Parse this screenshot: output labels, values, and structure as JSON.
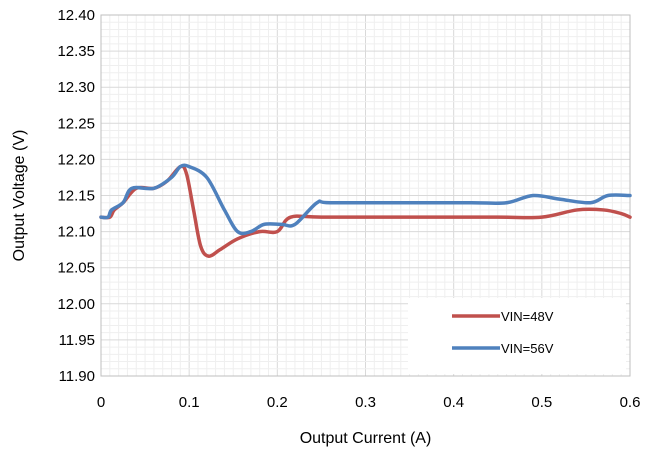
{
  "chart_data": {
    "type": "line",
    "title": "",
    "xlabel": "Output Current (A)",
    "ylabel": "Output Voltage (V)",
    "xlim": [
      0,
      0.6
    ],
    "ylim": [
      11.9,
      12.4
    ],
    "x_ticks": [
      "0",
      "0.1",
      "0.2",
      "0.3",
      "0.4",
      "0.5",
      "0.6"
    ],
    "y_ticks": [
      "11.90",
      "11.95",
      "12.00",
      "12.05",
      "12.10",
      "12.15",
      "12.20",
      "12.25",
      "12.30",
      "12.35",
      "12.40"
    ],
    "grid": true,
    "legend_position": "bottom-right",
    "series": [
      {
        "name": "VIN=48V",
        "color": "#c0504d",
        "points": [
          [
            0,
            12.12
          ],
          [
            0.01,
            12.12
          ],
          [
            0.015,
            12.13
          ],
          [
            0.025,
            12.14
          ],
          [
            0.04,
            12.16
          ],
          [
            0.06,
            12.16
          ],
          [
            0.075,
            12.17
          ],
          [
            0.09,
            12.19
          ],
          [
            0.097,
            12.18
          ],
          [
            0.105,
            12.13
          ],
          [
            0.113,
            12.08
          ],
          [
            0.122,
            12.066
          ],
          [
            0.135,
            12.075
          ],
          [
            0.155,
            12.09
          ],
          [
            0.18,
            12.1
          ],
          [
            0.2,
            12.1
          ],
          [
            0.215,
            12.12
          ],
          [
            0.25,
            12.12
          ],
          [
            0.35,
            12.12
          ],
          [
            0.45,
            12.12
          ],
          [
            0.5,
            12.12
          ],
          [
            0.54,
            12.13
          ],
          [
            0.57,
            12.13
          ],
          [
            0.59,
            12.125
          ],
          [
            0.6,
            12.12
          ]
        ]
      },
      {
        "name": "VIN=56V",
        "color": "#4f81bd",
        "points": [
          [
            0,
            12.12
          ],
          [
            0.008,
            12.12
          ],
          [
            0.012,
            12.13
          ],
          [
            0.025,
            12.14
          ],
          [
            0.035,
            12.16
          ],
          [
            0.06,
            12.16
          ],
          [
            0.08,
            12.175
          ],
          [
            0.09,
            12.19
          ],
          [
            0.1,
            12.19
          ],
          [
            0.12,
            12.175
          ],
          [
            0.14,
            12.13
          ],
          [
            0.155,
            12.1
          ],
          [
            0.17,
            12.1
          ],
          [
            0.185,
            12.11
          ],
          [
            0.205,
            12.11
          ],
          [
            0.22,
            12.11
          ],
          [
            0.245,
            12.14
          ],
          [
            0.26,
            12.14
          ],
          [
            0.35,
            12.14
          ],
          [
            0.42,
            12.14
          ],
          [
            0.46,
            12.14
          ],
          [
            0.49,
            12.15
          ],
          [
            0.52,
            12.145
          ],
          [
            0.555,
            12.14
          ],
          [
            0.575,
            12.15
          ],
          [
            0.6,
            12.15
          ]
        ]
      }
    ]
  }
}
